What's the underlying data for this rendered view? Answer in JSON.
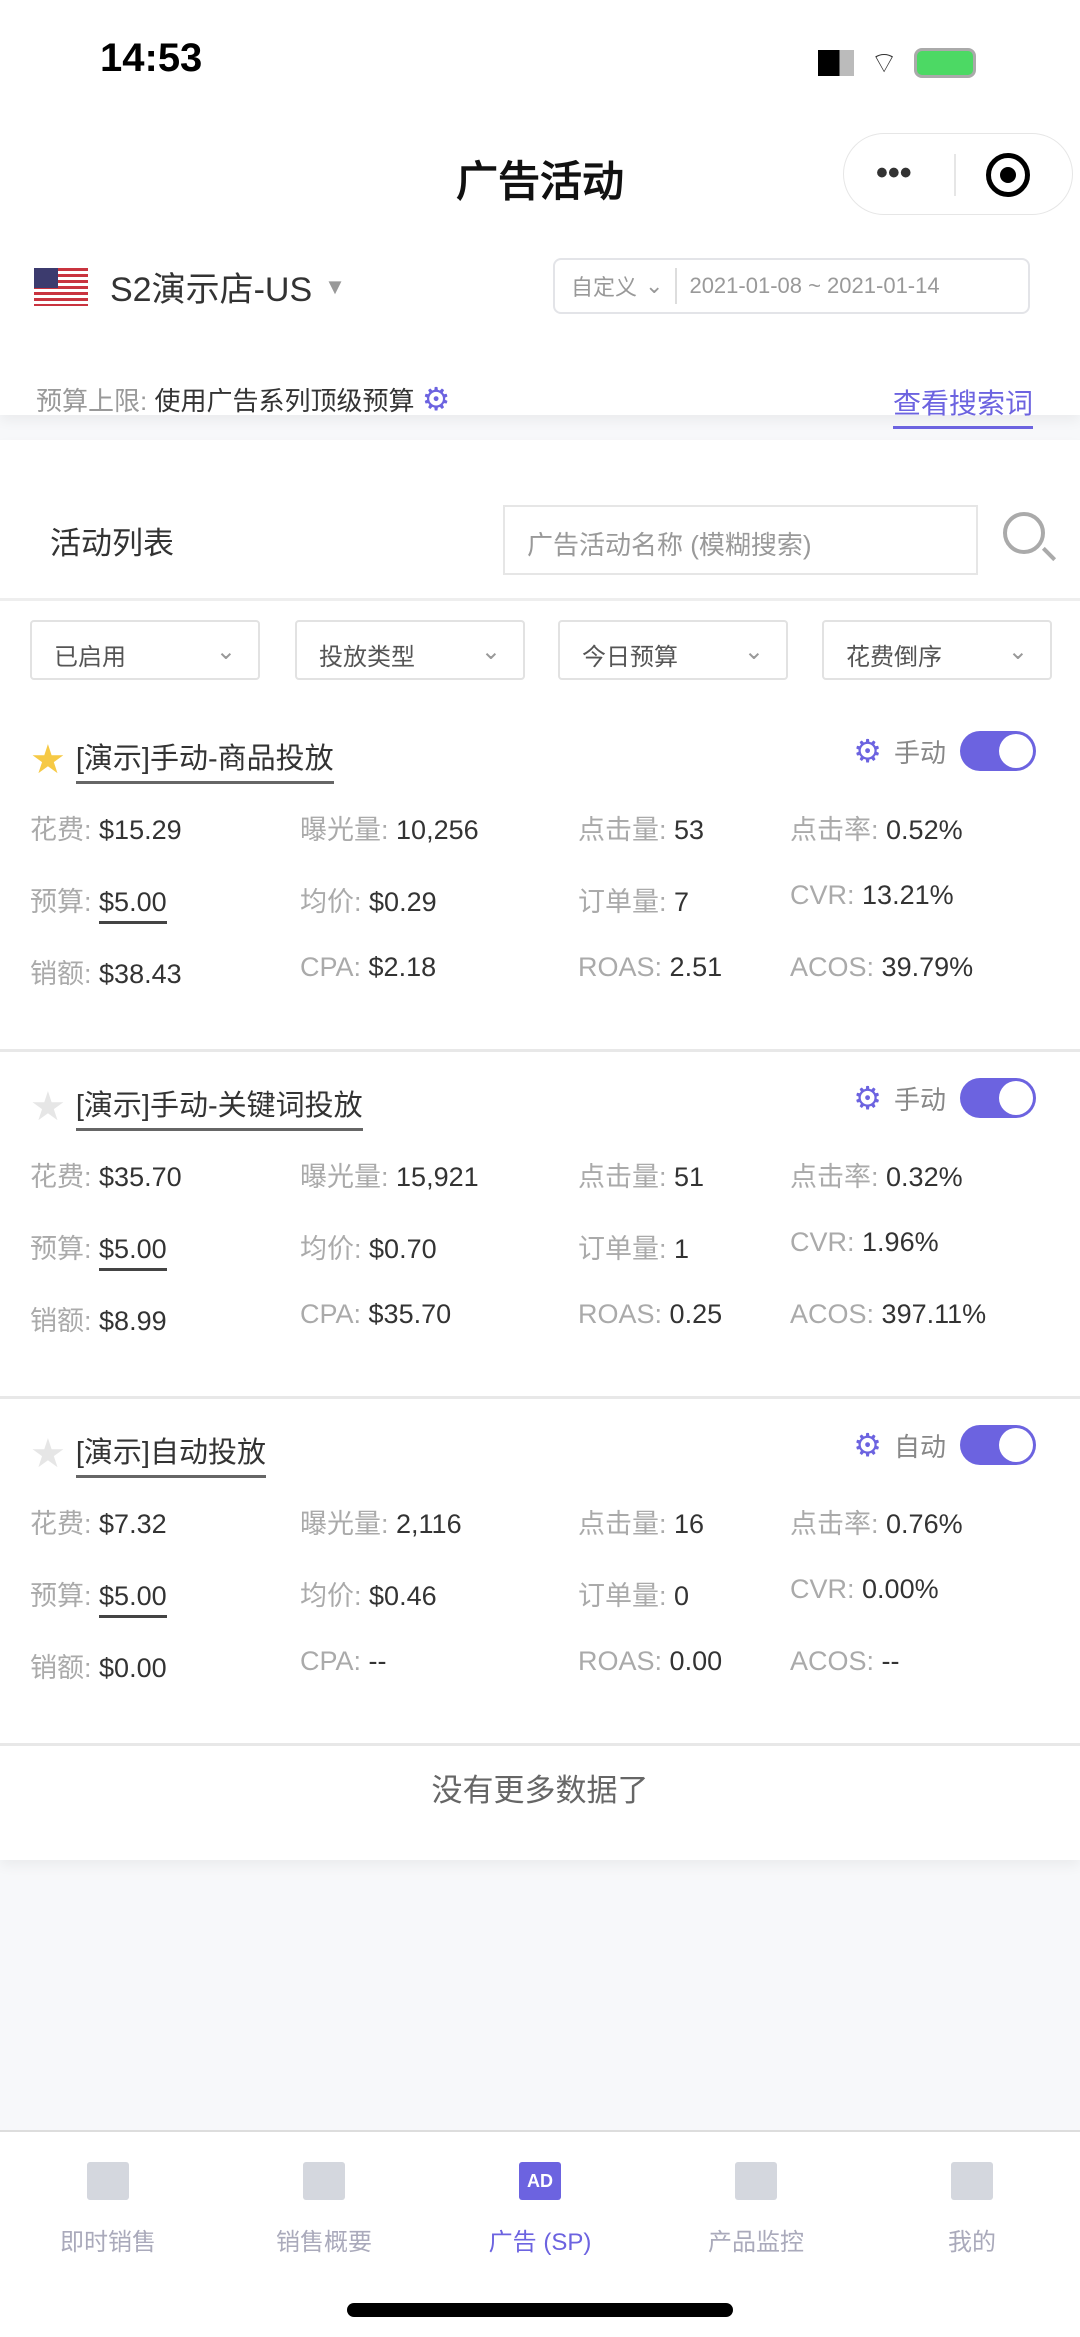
{
  "status": {
    "time": "14:53"
  },
  "header": {
    "title": "广告活动"
  },
  "store": {
    "name": "S2演示店-US"
  },
  "date": {
    "mode": "自定义",
    "range": "2021-01-08 ~ 2021-01-14"
  },
  "budget": {
    "label": "预算上限:",
    "value": "使用广告系列顶级预算"
  },
  "search_terms_link": "查看搜索词",
  "list": {
    "title": "活动列表",
    "search_placeholder": "广告活动名称 (模糊搜索)",
    "filters": [
      "已启用",
      "投放类型",
      "今日预算",
      "花费倒序"
    ]
  },
  "accent": "#6c63e0",
  "campaigns": [
    {
      "name": "[演示]手动-商品投放",
      "starred": true,
      "type": "手动",
      "enabled": true,
      "m": [
        [
          "花费:",
          "$15.29"
        ],
        [
          "曝光量:",
          "10,256"
        ],
        [
          "点击量:",
          "53"
        ],
        [
          "点击率:",
          "0.52%"
        ],
        [
          "预算:",
          "$5.00"
        ],
        [
          "均价:",
          "$0.29"
        ],
        [
          "订单量:",
          "7"
        ],
        [
          "CVR:",
          "13.21%"
        ],
        [
          "销额:",
          "$38.43"
        ],
        [
          "CPA:",
          "$2.18"
        ],
        [
          "ROAS:",
          "2.51"
        ],
        [
          "ACOS:",
          "39.79%"
        ]
      ]
    },
    {
      "name": "[演示]手动-关键词投放",
      "starred": false,
      "type": "手动",
      "enabled": true,
      "m": [
        [
          "花费:",
          "$35.70"
        ],
        [
          "曝光量:",
          "15,921"
        ],
        [
          "点击量:",
          "51"
        ],
        [
          "点击率:",
          "0.32%"
        ],
        [
          "预算:",
          "$5.00"
        ],
        [
          "均价:",
          "$0.70"
        ],
        [
          "订单量:",
          "1"
        ],
        [
          "CVR:",
          "1.96%"
        ],
        [
          "销额:",
          "$8.99"
        ],
        [
          "CPA:",
          "$35.70"
        ],
        [
          "ROAS:",
          "0.25"
        ],
        [
          "ACOS:",
          "397.11%"
        ]
      ]
    },
    {
      "name": "[演示]自动投放",
      "starred": false,
      "type": "自动",
      "enabled": true,
      "m": [
        [
          "花费:",
          "$7.32"
        ],
        [
          "曝光量:",
          "2,116"
        ],
        [
          "点击量:",
          "16"
        ],
        [
          "点击率:",
          "0.76%"
        ],
        [
          "预算:",
          "$5.00"
        ],
        [
          "均价:",
          "$0.46"
        ],
        [
          "订单量:",
          "0"
        ],
        [
          "CVR:",
          "0.00%"
        ],
        [
          "销额:",
          "$0.00"
        ],
        [
          "CPA:",
          "--"
        ],
        [
          "ROAS:",
          "0.00"
        ],
        [
          "ACOS:",
          "--"
        ]
      ]
    }
  ],
  "no_more": "没有更多数据了",
  "nav": [
    {
      "label": "即时销售",
      "icon": "chart-icon"
    },
    {
      "label": "销售概要",
      "icon": "trend-icon"
    },
    {
      "label": "广告 (SP)",
      "icon": "ad-icon",
      "badge": "AD",
      "active": true
    },
    {
      "label": "产品监控",
      "icon": "monitor-icon"
    },
    {
      "label": "我的",
      "icon": "user-icon"
    }
  ]
}
